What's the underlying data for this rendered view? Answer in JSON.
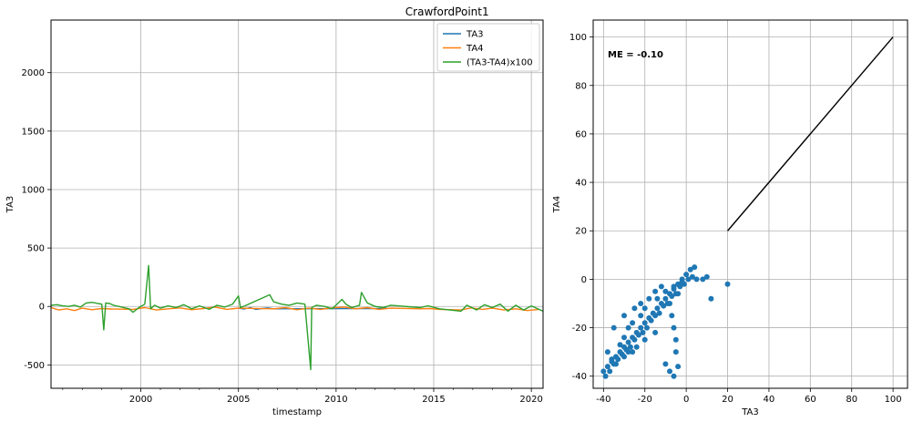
{
  "figure": {
    "suptitle": "CrawfordPoint1"
  },
  "chart_data": [
    {
      "type": "line",
      "title": "CrawfordPoint1",
      "xlabel": "timestamp",
      "ylabel": "TA3",
      "xlim": [
        1995.4,
        2020.6
      ],
      "ylim": [
        -700,
        2450
      ],
      "xticks": [
        2000,
        2005,
        2010,
        2015,
        2020
      ],
      "yticks": [
        -500,
        0,
        500,
        1000,
        1500,
        2000
      ],
      "grid": true,
      "legend_position": "top-right",
      "series": [
        {
          "name": "TA3",
          "color": "#1f77b4",
          "x": [
            2005.0,
            2005.3,
            2005.6,
            2005.9,
            2006.2,
            2006.5,
            2006.8,
            2012.3,
            2012.6
          ],
          "y": [
            -15,
            -22,
            -10,
            -25,
            -18,
            -12,
            -20,
            -18,
            -15
          ]
        },
        {
          "name": "TA4",
          "color": "#ff7f0e",
          "x": [
            1995.4,
            1995.8,
            1996.2,
            1996.6,
            1997.0,
            1997.5,
            1998.0,
            1998.5,
            1999.6,
            2000.2,
            2000.8,
            2001.4,
            2002.0,
            2002.6,
            2003.2,
            2003.8,
            2004.4,
            2005.0,
            2006.8,
            2007.4,
            2008.0,
            2008.6,
            2009.2,
            2009.8,
            2010.4,
            2011.0,
            2011.6,
            2012.2,
            2012.8,
            2014.3,
            2014.8,
            2015.3,
            2016.4,
            2016.9,
            2017.5,
            2018.0,
            2018.6,
            2019.2,
            2019.8,
            2020.4
          ],
          "y": [
            -10,
            -30,
            -20,
            -35,
            -15,
            -28,
            -18,
            -22,
            -25,
            -10,
            -30,
            -20,
            -12,
            -28,
            -18,
            -5,
            -25,
            -15,
            -20,
            -10,
            -28,
            -15,
            -25,
            -12,
            -5,
            -20,
            -10,
            -25,
            -15,
            -20,
            -18,
            -25,
            -30,
            -12,
            -25,
            -15,
            -30,
            -20,
            -35,
            -25
          ]
        },
        {
          "name": "(TA3-TA4)x100",
          "color": "#2ca02c",
          "x": [
            1995.4,
            1995.7,
            1996.0,
            1996.3,
            1996.6,
            1996.9,
            1997.2,
            1997.5,
            1997.8,
            1998.0,
            1998.1,
            1998.2,
            1998.4,
            1998.6,
            1999.4,
            1999.6,
            1999.9,
            2000.2,
            2000.4,
            2000.5,
            2000.7,
            2001.0,
            2001.4,
            2001.8,
            2002.2,
            2002.6,
            2003.0,
            2003.5,
            2003.9,
            2004.3,
            2004.7,
            2005.0,
            2005.1,
            2005.4,
            2006.6,
            2006.8,
            2007.2,
            2007.6,
            2008.0,
            2008.4,
            2008.7,
            2008.75,
            2009.0,
            2009.4,
            2009.8,
            2010.3,
            2010.5,
            2010.8,
            2011.2,
            2011.3,
            2011.6,
            2012.0,
            2012.4,
            2012.8,
            2014.3,
            2014.7,
            2015.3,
            2016.4,
            2016.7,
            2017.2,
            2017.6,
            2018.0,
            2018.4,
            2018.8,
            2019.2,
            2019.6,
            2020.0,
            2020.6
          ],
          "y": [
            10,
            15,
            5,
            0,
            10,
            -5,
            30,
            35,
            25,
            20,
            -200,
            30,
            25,
            10,
            -20,
            -50,
            -10,
            20,
            350,
            -20,
            10,
            -15,
            5,
            -10,
            15,
            -20,
            5,
            -25,
            10,
            -5,
            20,
            90,
            -10,
            10,
            100,
            40,
            20,
            10,
            30,
            20,
            -540,
            -10,
            10,
            0,
            -20,
            60,
            20,
            -10,
            10,
            120,
            30,
            0,
            -10,
            10,
            -10,
            5,
            -20,
            -40,
            10,
            -30,
            15,
            -10,
            20,
            -40,
            10,
            -30,
            5,
            -40
          ]
        }
      ]
    },
    {
      "type": "scatter",
      "xlabel": "TA3",
      "ylabel": "TA4",
      "annotation": "ME = -0.10",
      "xlim": [
        -45,
        107
      ],
      "ylim": [
        -45,
        107
      ],
      "xticks": [
        -40,
        -20,
        0,
        20,
        40,
        60,
        80,
        100
      ],
      "yticks": [
        -40,
        -20,
        0,
        20,
        40,
        60,
        80,
        100
      ],
      "grid": true,
      "point_color": "#1f77b4",
      "reference_line": {
        "x": [
          20,
          100
        ],
        "y": [
          20,
          100
        ],
        "color": "#000000"
      },
      "points": {
        "x": [
          -40,
          -38,
          -36,
          -34,
          -32,
          -30,
          -28,
          -26,
          -24,
          -22,
          -20,
          -18,
          -16,
          -14,
          -12,
          -10,
          -8,
          -6,
          -4,
          -2,
          0,
          2,
          4,
          -39,
          -37,
          -35,
          -33,
          -31,
          -29,
          -27,
          -25,
          -23,
          -21,
          -19,
          -17,
          -15,
          -13,
          -11,
          -9,
          -7,
          -5,
          -3,
          -1,
          1,
          3,
          -35,
          -30,
          -28,
          -25,
          -22,
          -20,
          -18,
          -15,
          -12,
          -10,
          -8,
          -6,
          -5,
          -4,
          -6,
          -7,
          -5,
          5,
          8,
          10,
          12,
          20,
          -38,
          -36,
          -34,
          -32,
          -30,
          -30,
          -28,
          -26,
          -24,
          -26,
          -22,
          -20,
          -15,
          -14,
          -10,
          -8,
          -6,
          -4,
          -2
        ],
        "y": [
          -38,
          -36,
          -34,
          -32,
          -30,
          -28,
          -26,
          -24,
          -22,
          -20,
          -18,
          -16,
          -14,
          -12,
          -10,
          -8,
          -6,
          -4,
          -2,
          0,
          2,
          4,
          5,
          -40,
          -38,
          -35,
          -33,
          -31,
          -29,
          -28,
          -25,
          -23,
          -22,
          -20,
          -17,
          -15,
          -14,
          -11,
          -10,
          -7,
          -6,
          -3,
          -2,
          0,
          1,
          -20,
          -15,
          -30,
          -12,
          -10,
          -25,
          -8,
          -5,
          -3,
          -35,
          -38,
          -40,
          -30,
          -36,
          -20,
          -15,
          -25,
          0,
          0,
          1,
          -8,
          -2,
          -30,
          -33,
          -35,
          -27,
          -32,
          -24,
          -20,
          -30,
          -28,
          -18,
          -15,
          -12,
          -22,
          -8,
          -5,
          -10,
          -3,
          -6,
          -1
        ]
      }
    }
  ]
}
